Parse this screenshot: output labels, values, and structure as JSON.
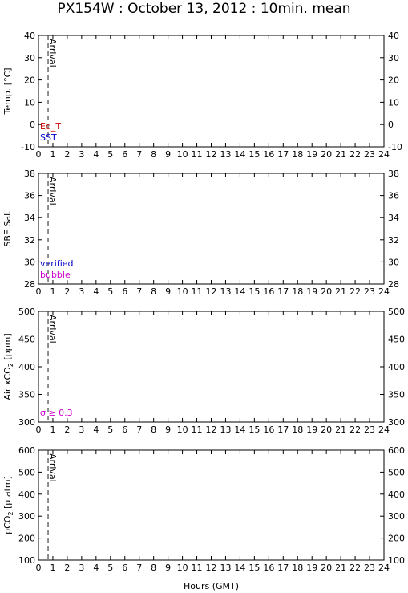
{
  "title": "PX154W : October 13, 2012 : 10min. mean",
  "xlabel": "Hours (GMT)",
  "chart_data": [
    {
      "type": "line",
      "ylabel": "Temp. [°C]",
      "ylim": [
        -10,
        40
      ],
      "yticks": [
        "-10",
        "0",
        "10",
        "20",
        "30",
        "40"
      ],
      "xlim": [
        0,
        24
      ],
      "xticks": [
        "0",
        "1",
        "2",
        "3",
        "4",
        "5",
        "6",
        "7",
        "8",
        "9",
        "10",
        "11",
        "12",
        "13",
        "14",
        "15",
        "16",
        "17",
        "18",
        "19",
        "20",
        "21",
        "22",
        "23",
        "24"
      ],
      "arrival_x": 0.67,
      "arrival_label": "Arrival",
      "legend": [
        {
          "label": "Eq_T",
          "color": "#cc0000"
        },
        {
          "label": "SST",
          "color": "#0000cc"
        }
      ],
      "series": []
    },
    {
      "type": "line",
      "ylabel": "SBE Sal.",
      "ylim": [
        28,
        38
      ],
      "yticks": [
        "28",
        "30",
        "32",
        "34",
        "36",
        "38"
      ],
      "xlim": [
        0,
        24
      ],
      "xticks": [
        "0",
        "1",
        "2",
        "3",
        "4",
        "5",
        "6",
        "7",
        "8",
        "9",
        "10",
        "11",
        "12",
        "13",
        "14",
        "15",
        "16",
        "17",
        "18",
        "19",
        "20",
        "21",
        "22",
        "23",
        "24"
      ],
      "arrival_x": 0.67,
      "arrival_label": "Arrival",
      "legend": [
        {
          "label": "verified",
          "color": "#0000cc"
        },
        {
          "label": "bubble",
          "color": "#cc00cc"
        }
      ],
      "series": []
    },
    {
      "type": "line",
      "ylabel": "Air xCO",
      "ylabel_sub": "2",
      "ylabel_suffix": " [ppm]",
      "ylim": [
        300,
        500
      ],
      "yticks": [
        "300",
        "350",
        "400",
        "450",
        "500"
      ],
      "xlim": [
        0,
        24
      ],
      "xticks": [
        "0",
        "1",
        "2",
        "3",
        "4",
        "5",
        "6",
        "7",
        "8",
        "9",
        "10",
        "11",
        "12",
        "13",
        "14",
        "15",
        "16",
        "17",
        "18",
        "19",
        "20",
        "21",
        "22",
        "23",
        "24"
      ],
      "arrival_x": 0.67,
      "arrival_label": "Arrival",
      "legend": [
        {
          "label": "σ ≥ 0.3",
          "color": "#cc00cc"
        }
      ],
      "series": []
    },
    {
      "type": "line",
      "ylabel": "pCO",
      "ylabel_sub": "2",
      "ylabel_suffix": " [μ atm]",
      "ylim": [
        100,
        600
      ],
      "yticks": [
        "100",
        "200",
        "300",
        "400",
        "500",
        "600"
      ],
      "xlim": [
        0,
        24
      ],
      "xticks": [
        "0",
        "1",
        "2",
        "3",
        "4",
        "5",
        "6",
        "7",
        "8",
        "9",
        "10",
        "11",
        "12",
        "13",
        "14",
        "15",
        "16",
        "17",
        "18",
        "19",
        "20",
        "21",
        "22",
        "23",
        "24"
      ],
      "arrival_x": 0.67,
      "arrival_label": "Arrival",
      "legend": [],
      "series": []
    }
  ]
}
